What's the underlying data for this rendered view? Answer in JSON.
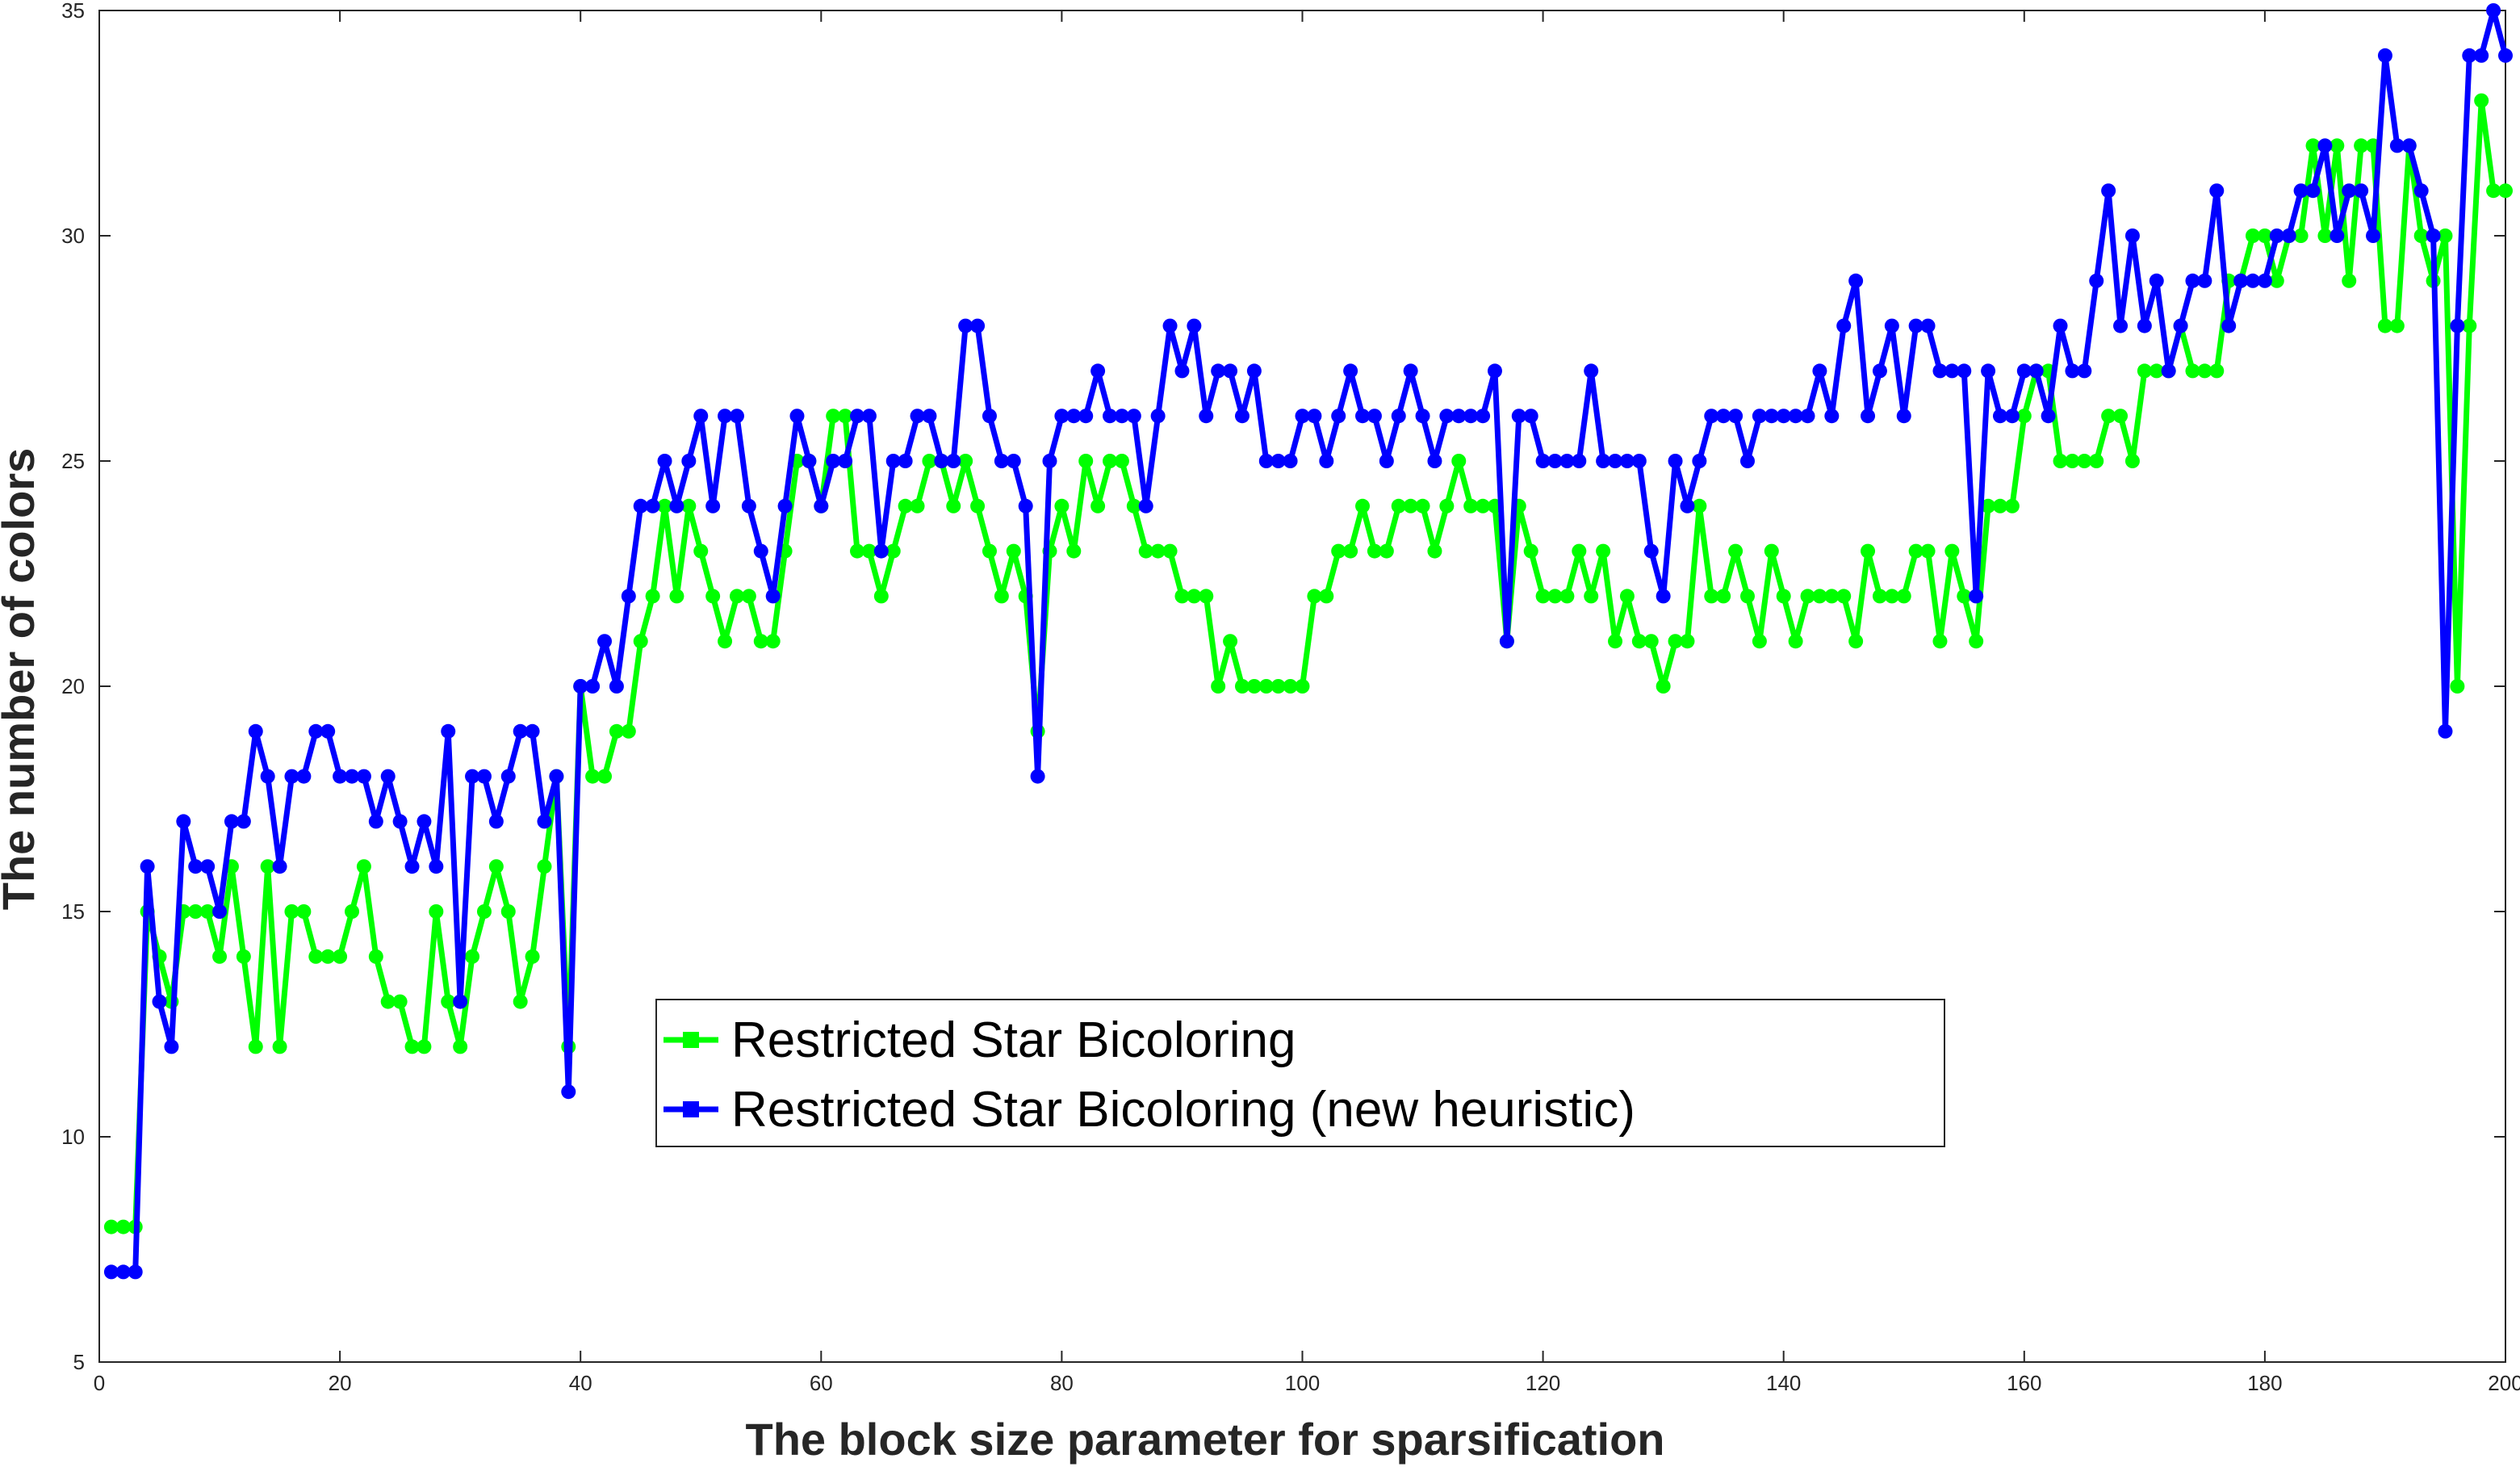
{
  "chart_data": {
    "type": "line",
    "xlabel": "The block size parameter for sparsification",
    "ylabel": "The number of colors",
    "xlim": [
      0,
      200
    ],
    "ylim": [
      5,
      35
    ],
    "xticks": [
      0,
      20,
      40,
      60,
      80,
      100,
      120,
      140,
      160,
      180,
      200
    ],
    "yticks": [
      5,
      10,
      15,
      20,
      25,
      30,
      35
    ],
    "grid": false,
    "legend": "center",
    "x": [
      1,
      2,
      3,
      4,
      5,
      6,
      7,
      8,
      9,
      10,
      11,
      12,
      13,
      14,
      15,
      16,
      17,
      18,
      19,
      20,
      21,
      22,
      23,
      24,
      25,
      26,
      27,
      28,
      29,
      30,
      31,
      32,
      33,
      34,
      35,
      36,
      37,
      38,
      39,
      40,
      41,
      42,
      43,
      44,
      45,
      46,
      47,
      48,
      49,
      50,
      51,
      52,
      53,
      54,
      55,
      56,
      57,
      58,
      59,
      60,
      61,
      62,
      63,
      64,
      65,
      66,
      67,
      68,
      69,
      70,
      71,
      72,
      73,
      74,
      75,
      76,
      77,
      78,
      79,
      80,
      81,
      82,
      83,
      84,
      85,
      86,
      87,
      88,
      89,
      90,
      91,
      92,
      93,
      94,
      95,
      96,
      97,
      98,
      99,
      100,
      101,
      102,
      103,
      104,
      105,
      106,
      107,
      108,
      109,
      110,
      111,
      112,
      113,
      114,
      115,
      116,
      117,
      118,
      119,
      120,
      121,
      122,
      123,
      124,
      125,
      126,
      127,
      128,
      129,
      130,
      131,
      132,
      133,
      134,
      135,
      136,
      137,
      138,
      139,
      140,
      141,
      142,
      143,
      144,
      145,
      146,
      147,
      148,
      149,
      150,
      151,
      152,
      153,
      154,
      155,
      156,
      157,
      158,
      159,
      160,
      161,
      162,
      163,
      164,
      165,
      166,
      167,
      168,
      169,
      170,
      171,
      172,
      173,
      174,
      175,
      176,
      177,
      178,
      179,
      180,
      181,
      182,
      183,
      184,
      185,
      186,
      187,
      188,
      189,
      190,
      191,
      192,
      193,
      194,
      195,
      196,
      197,
      198,
      199,
      200
    ],
    "series": [
      {
        "name": "Restricted Star Bicoloring",
        "color": "#00ff00",
        "values": [
          8,
          8,
          8,
          15,
          14,
          13,
          15,
          15,
          15,
          14,
          16,
          14,
          12,
          16,
          12,
          15,
          15,
          14,
          14,
          14,
          15,
          16,
          14,
          13,
          13,
          12,
          12,
          15,
          13,
          12,
          14,
          15,
          16,
          15,
          13,
          14,
          16,
          18,
          12,
          20,
          18,
          18,
          19,
          19,
          21,
          22,
          24,
          22,
          24,
          23,
          22,
          21,
          22,
          22,
          21,
          21,
          23,
          25,
          25,
          24,
          26,
          26,
          23,
          23,
          22,
          23,
          24,
          24,
          25,
          25,
          24,
          25,
          24,
          23,
          22,
          23,
          22,
          19,
          23,
          24,
          23,
          25,
          24,
          25,
          25,
          24,
          23,
          23,
          23,
          22,
          22,
          22,
          20,
          21,
          20,
          20,
          20,
          20,
          20,
          20,
          22,
          22,
          23,
          23,
          24,
          23,
          23,
          24,
          24,
          24,
          23,
          24,
          25,
          24,
          24,
          24,
          21,
          24,
          23,
          22,
          22,
          22,
          23,
          22,
          23,
          21,
          22,
          21,
          21,
          20,
          21,
          21,
          24,
          22,
          22,
          23,
          22,
          21,
          23,
          22,
          21,
          22,
          22,
          22,
          22,
          21,
          23,
          22,
          22,
          22,
          23,
          23,
          21,
          23,
          22,
          21,
          24,
          24,
          24,
          26,
          27,
          27,
          25,
          25,
          25,
          25,
          26,
          26,
          25,
          27,
          27,
          27,
          28,
          27,
          27,
          27,
          29,
          29,
          30,
          30,
          29,
          30,
          30,
          32,
          30,
          32,
          29,
          32,
          32,
          28,
          28,
          32,
          30,
          29,
          30,
          20,
          28,
          33,
          31,
          31
        ]
      },
      {
        "name": "Restricted Star Bicoloring (new heuristic)",
        "color": "#0000ff",
        "values": [
          7,
          7,
          7,
          16,
          13,
          12,
          17,
          16,
          16,
          15,
          17,
          17,
          19,
          18,
          16,
          18,
          18,
          19,
          19,
          18,
          18,
          18,
          17,
          18,
          17,
          16,
          17,
          16,
          19,
          13,
          18,
          18,
          17,
          18,
          19,
          19,
          17,
          18,
          11,
          20,
          20,
          21,
          20,
          22,
          24,
          24,
          25,
          24,
          25,
          26,
          24,
          26,
          26,
          24,
          23,
          22,
          24,
          26,
          25,
          24,
          25,
          25,
          26,
          26,
          23,
          25,
          25,
          26,
          26,
          25,
          25,
          28,
          28,
          26,
          25,
          25,
          24,
          18,
          25,
          26,
          26,
          26,
          27,
          26,
          26,
          26,
          24,
          26,
          28,
          27,
          28,
          26,
          27,
          27,
          26,
          27,
          25,
          25,
          25,
          26,
          26,
          25,
          26,
          27,
          26,
          26,
          25,
          26,
          27,
          26,
          25,
          26,
          26,
          26,
          26,
          27,
          21,
          26,
          26,
          25,
          25,
          25,
          25,
          27,
          25,
          25,
          25,
          25,
          23,
          22,
          25,
          24,
          25,
          26,
          26,
          26,
          25,
          26,
          26,
          26,
          26,
          26,
          27,
          26,
          28,
          29,
          26,
          27,
          28,
          26,
          28,
          28,
          27,
          27,
          27,
          22,
          27,
          26,
          26,
          27,
          27,
          26,
          28,
          27,
          27,
          29,
          31,
          28,
          30,
          28,
          29,
          27,
          28,
          29,
          29,
          31,
          28,
          29,
          29,
          29,
          30,
          30,
          31,
          31,
          32,
          30,
          31,
          31,
          30,
          34,
          32,
          32,
          31,
          30,
          19,
          28,
          34,
          34,
          35,
          34
        ]
      }
    ]
  }
}
